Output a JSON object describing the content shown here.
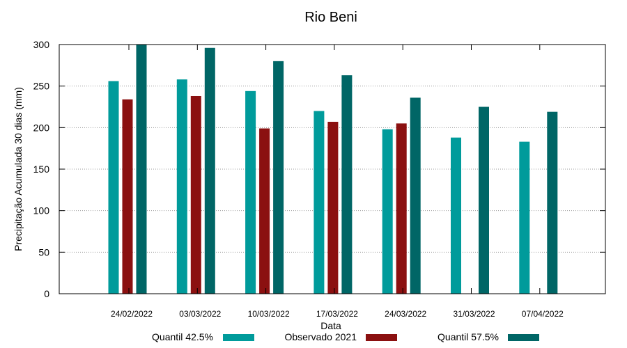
{
  "chart_data": {
    "type": "bar",
    "title": "Rio Beni",
    "xlabel": "Data",
    "ylabel": "Precipitação Acumulada 30 dias (mm)",
    "ylim": [
      0,
      300
    ],
    "yticks": [
      0,
      50,
      100,
      150,
      200,
      250,
      300
    ],
    "grid": true,
    "legend": "bottom",
    "categories": [
      "24/02/2022",
      "03/03/2022",
      "10/03/2022",
      "17/03/2022",
      "24/03/2022",
      "31/03/2022",
      "07/04/2022"
    ],
    "series": [
      {
        "name": "Quantil 42.5%",
        "color": "#009b9b",
        "values": [
          256,
          258,
          244,
          220,
          198,
          188,
          183
        ]
      },
      {
        "name": "Observado 2021",
        "color": "#8b1010",
        "values": [
          234,
          238,
          199,
          207,
          205,
          null,
          null
        ]
      },
      {
        "name": "Quantil 57.5%",
        "color": "#006666",
        "values": [
          300,
          296,
          280,
          263,
          236,
          225,
          219
        ]
      }
    ]
  }
}
